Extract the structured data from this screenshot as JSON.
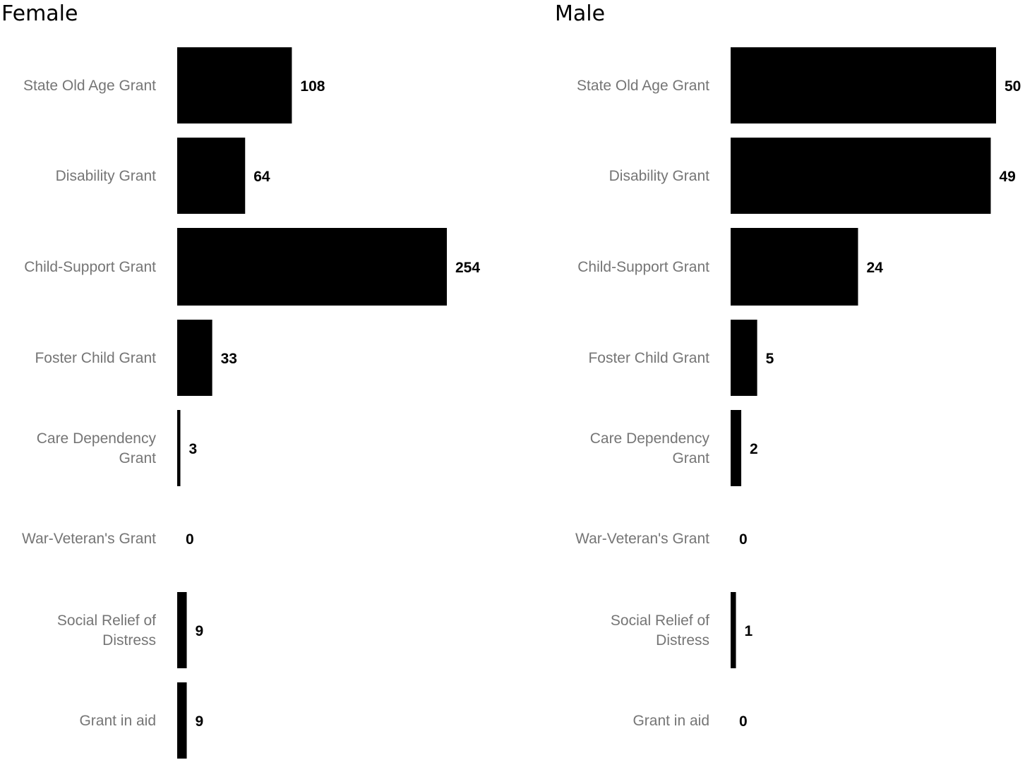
{
  "chart_data": [
    {
      "type": "bar",
      "orientation": "horizontal",
      "title": "Female",
      "categories": [
        "State Old Age Grant",
        "Disability Grant",
        "Child-Support Grant",
        "Foster Child Grant",
        "Care Dependency Grant",
        "War-Veteran's Grant",
        "Social Relief of Distress",
        "Grant in aid"
      ],
      "category_lines": [
        [
          "State Old Age Grant"
        ],
        [
          "Disability Grant"
        ],
        [
          "Child-Support Grant"
        ],
        [
          "Foster Child Grant"
        ],
        [
          "Care Dependency",
          "Grant"
        ],
        [
          "War-Veteran's Grant"
        ],
        [
          "Social Relief of",
          "Distress"
        ],
        [
          "Grant in aid"
        ]
      ],
      "values": [
        108,
        64,
        254,
        33,
        3,
        0,
        9,
        9
      ],
      "data_labels": [
        "108",
        "64",
        "254",
        "33",
        "3",
        "0",
        "9",
        "9"
      ],
      "xlim": [
        0,
        254
      ],
      "bar_color": "#000000",
      "grid": false
    },
    {
      "type": "bar",
      "orientation": "horizontal",
      "title": "Male",
      "categories": [
        "State Old Age Grant",
        "Disability Grant",
        "Child-Support Grant",
        "Foster Child Grant",
        "Care Dependency Grant",
        "War-Veteran's Grant",
        "Social Relief of Distress",
        "Grant in aid"
      ],
      "category_lines": [
        [
          "State Old Age Grant"
        ],
        [
          "Disability Grant"
        ],
        [
          "Child-Support Grant"
        ],
        [
          "Foster Child Grant"
        ],
        [
          "Care Dependency",
          "Grant"
        ],
        [
          "War-Veteran's Grant"
        ],
        [
          "Social Relief of",
          "Distress"
        ],
        [
          "Grant in aid"
        ]
      ],
      "values": [
        50,
        49,
        24,
        5,
        2,
        0,
        1,
        0
      ],
      "data_labels": [
        "50",
        "49",
        "24",
        "5",
        "2",
        "0",
        "1",
        "0"
      ],
      "xlim": [
        0,
        50
      ],
      "bar_color": "#000000",
      "grid": false
    }
  ]
}
